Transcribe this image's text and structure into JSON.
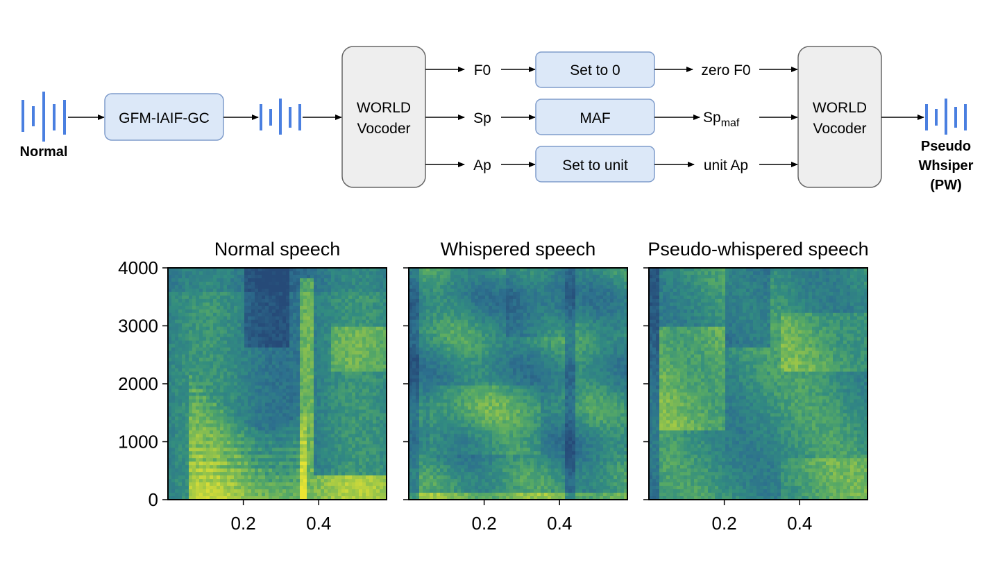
{
  "pipeline": {
    "input_label": "Normal",
    "filter_block": "GFM-IAIF-GC",
    "vocoder_line1": "WORLD",
    "vocoder_line2": "Vocoder",
    "features": {
      "f0": "F0",
      "sp": "Sp",
      "ap": "Ap"
    },
    "operations": {
      "f0": "Set to 0",
      "sp": "MAF",
      "ap": "Set to unit"
    },
    "outputs": {
      "f0": "zero F0",
      "sp_base": "Sp",
      "sp_sub": "maf",
      "ap": "unit Ap"
    },
    "output_label_line1": "Pseudo",
    "output_label_line2": "Whsiper",
    "output_label_line3": "(PW)",
    "colors": {
      "block_fill": "#dce8f8",
      "block_stroke": "#7f9ccb",
      "vocoder_fill": "#eeeeee",
      "vocoder_stroke": "#666666",
      "wave": "#4a7fe0"
    }
  },
  "chart_data": [
    {
      "type": "heatmap",
      "title": "Normal speech",
      "x_ticks": [
        "0.2",
        "0.4"
      ],
      "y_ticks": [
        "0",
        "1000",
        "2000",
        "3000",
        "4000"
      ],
      "xlim": [
        0,
        0.58
      ],
      "ylim": [
        0,
        4000
      ]
    },
    {
      "type": "heatmap",
      "title": "Whispered speech",
      "x_ticks": [
        "0.2",
        "0.4"
      ],
      "xlim": [
        0,
        0.58
      ],
      "ylim": [
        0,
        4000
      ]
    },
    {
      "type": "heatmap",
      "title": "Pseudo-whispered speech",
      "x_ticks": [
        "0.2",
        "0.4"
      ],
      "xlim": [
        0,
        0.58
      ],
      "ylim": [
        0,
        4000
      ]
    }
  ]
}
